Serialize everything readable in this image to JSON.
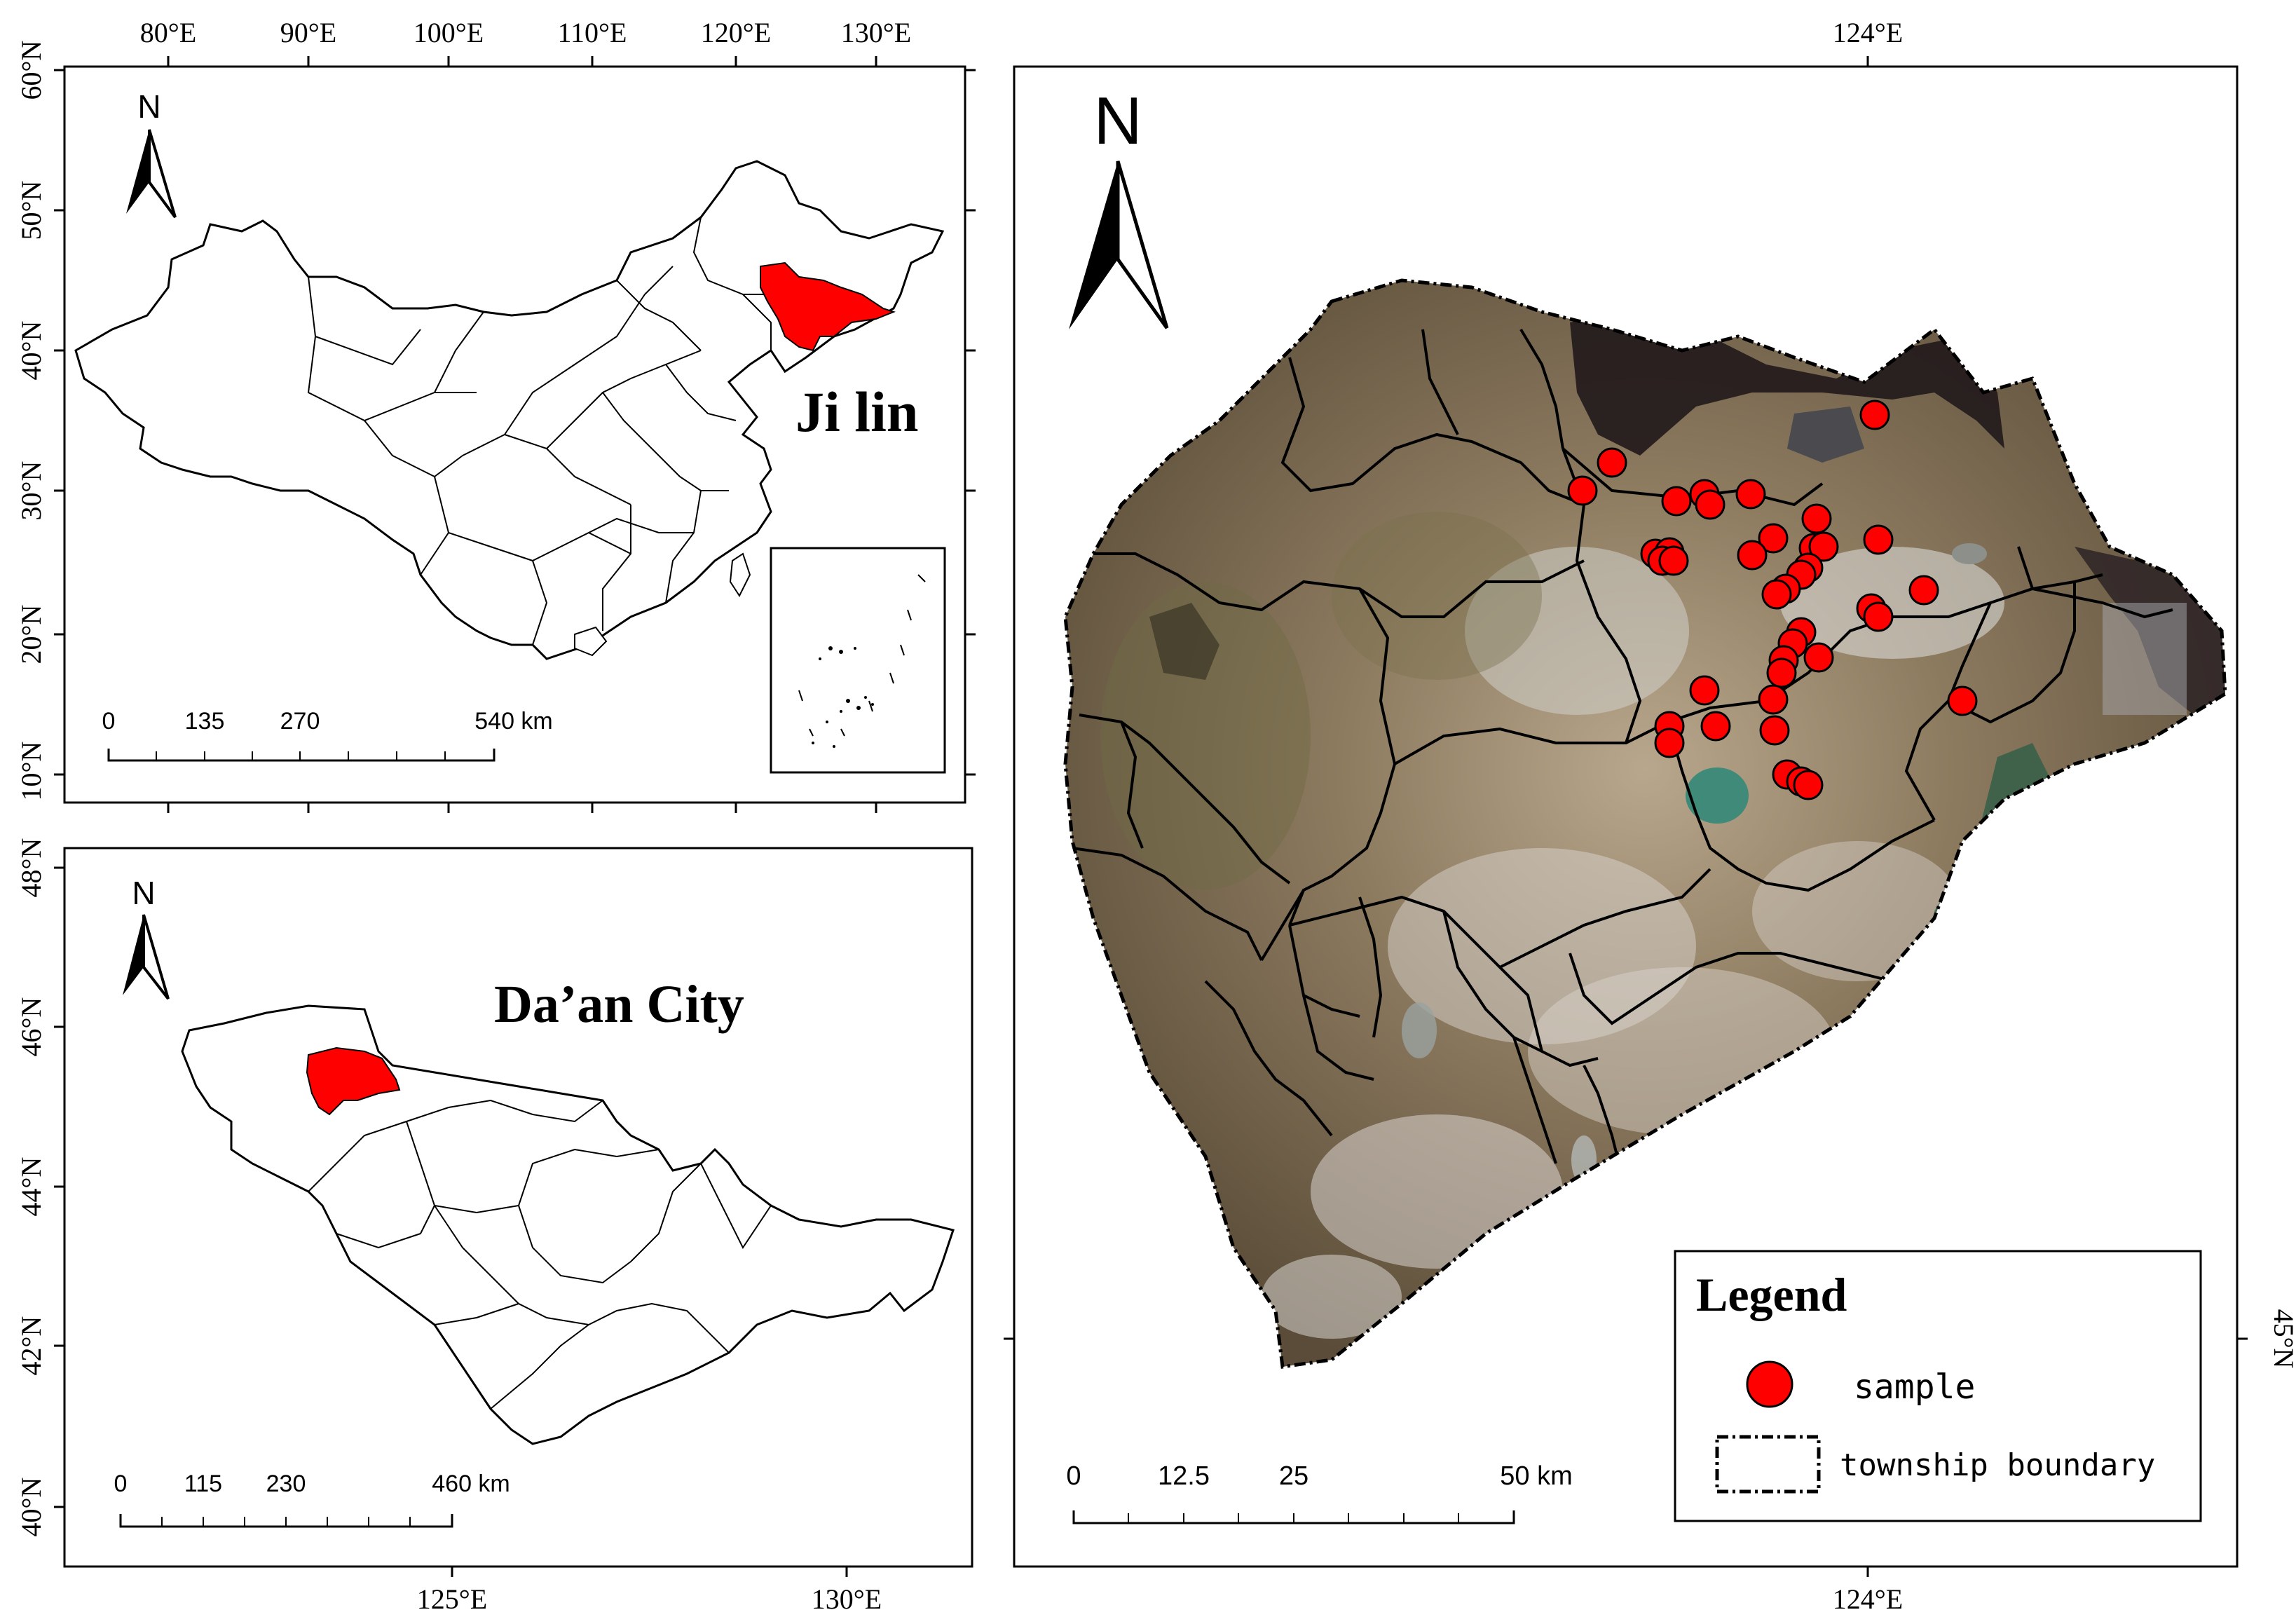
{
  "china_panel": {
    "north_label": "N",
    "top_ticks": [
      "80°E",
      "90°E",
      "100°E",
      "110°E",
      "120°E",
      "130°E"
    ],
    "left_ticks": [
      "60°N",
      "50°N",
      "40°N",
      "30°N",
      "20°N",
      "10°N"
    ],
    "region_label": "Ji lin",
    "scalebar": [
      "0",
      "135",
      "270",
      "540 km"
    ],
    "highlight_color": "#ff0000"
  },
  "jilin_panel": {
    "north_label": "N",
    "left_ticks": [
      "48°N",
      "46°N",
      "44°N",
      "42°N",
      "40°N"
    ],
    "bottom_ticks": [
      "125°E",
      "130°E"
    ],
    "region_label": "Da’an City",
    "scalebar": [
      "0",
      "115",
      "230",
      "460 km"
    ],
    "highlight_color": "#ff0000"
  },
  "daan_panel": {
    "north_label": "N",
    "top_tick": "124°E",
    "bottom_tick": "124°E",
    "right_tick": "45°N",
    "scalebar": [
      "0",
      "12.5",
      "25",
      "50 km"
    ],
    "sample_color": "#ff0000",
    "legend": {
      "title": "Legend",
      "sample_label": "sample",
      "boundary_label": "township boundary"
    }
  }
}
